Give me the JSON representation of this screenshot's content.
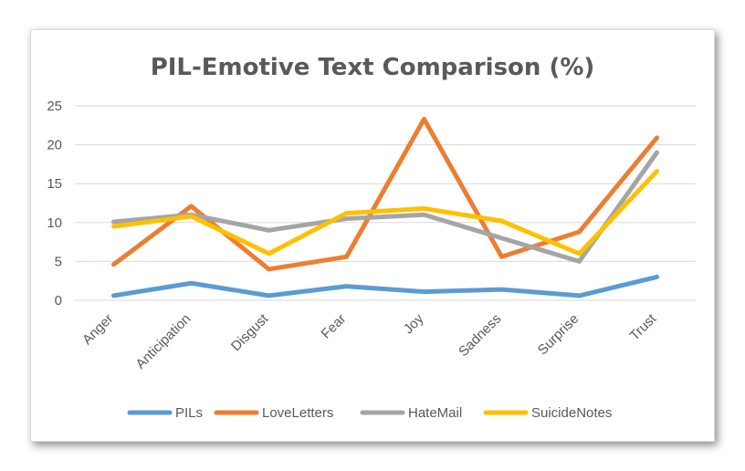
{
  "chart_data": {
    "type": "line",
    "title": "PIL-Emotive Text Comparison (%)",
    "xlabel": "",
    "ylabel": "",
    "categories": [
      "Anger",
      "Anticipation",
      "Disgust",
      "Fear",
      "Joy",
      "Sadness",
      "Surprise",
      "Trust"
    ],
    "ylim": [
      0,
      25
    ],
    "yticks": [
      "0",
      "5",
      "10",
      "15",
      "20",
      "25"
    ],
    "grid": true,
    "legend_position": "bottom",
    "series": [
      {
        "name": "PILs",
        "color": "#5b9bd5",
        "values": [
          0.6,
          2.2,
          0.6,
          1.8,
          1.1,
          1.4,
          0.6,
          3.0
        ]
      },
      {
        "name": "LoveLetters",
        "color": "#ed7d31",
        "values": [
          4.6,
          12.1,
          4.0,
          5.6,
          23.3,
          5.6,
          8.8,
          20.9
        ]
      },
      {
        "name": "HateMail",
        "color": "#a5a5a5",
        "values": [
          10.1,
          11.0,
          9.0,
          10.5,
          11.0,
          8.0,
          5.0,
          19.0
        ]
      },
      {
        "name": "SuicideNotes",
        "color": "#ffc000",
        "values": [
          9.5,
          10.8,
          6.0,
          11.2,
          11.8,
          10.2,
          6.0,
          16.6
        ]
      }
    ]
  }
}
